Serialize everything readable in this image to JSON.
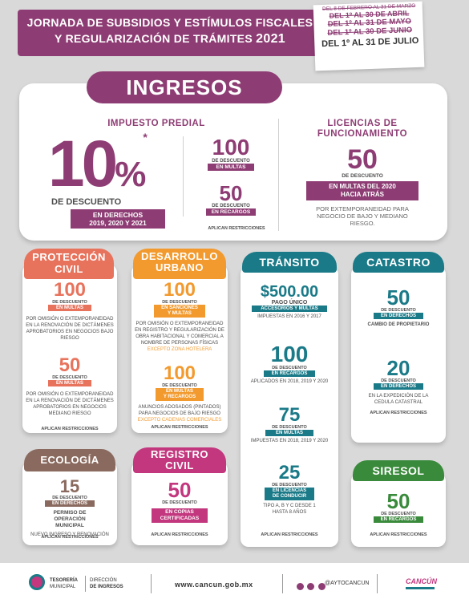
{
  "header": {
    "title_line1": "JORNADA DE SUBSIDIOS Y ESTÍMULOS FISCALES",
    "title_line2": "Y REGULARIZACIÓN DE TRÁMITES",
    "year": "2021",
    "dates": [
      "DEL 8 DE FEBRERO AL 31 DE MARZO",
      "DEL 1º AL 30 DE ABRIL",
      "DEL 1º AL 31 DE MAYO",
      "DEL 1º AL 30 DE JUNIO",
      "DEL 1º AL 31 DE JULIO"
    ]
  },
  "ingresos": {
    "title": "INGRESOS",
    "predial": {
      "title": "IMPUESTO PREDIAL",
      "main_value": "10",
      "main_pct": "%",
      "star": "*",
      "main_label": "DE DESCUENTO",
      "main_ribbon1": "EN DERECHOS",
      "main_ribbon2": "2019, 2020 Y 2021",
      "side1_value": "100",
      "side1_label": "DE DESCUENTO",
      "side1_ribbon": "EN MULTAS",
      "side2_value": "50",
      "side2_label": "DE DESCUENTO",
      "side2_ribbon": "EN RECARGOS",
      "note": "APLICAN RESTRICCIONES"
    },
    "licencias": {
      "title1": "LICENCIAS DE",
      "title2": "FUNCIONAMIENTO",
      "value": "50",
      "label": "DE DESCUENTO",
      "ribbon1": "EN MULTAS DEL 2020",
      "ribbon2": "HACIA ATRÁS",
      "desc": "POR EXTEMPORANEIDAD PARA NEGOCIO DE BAJO Y MEDIANO RIESGO."
    }
  },
  "proteccion": {
    "title": "PROTECCIÓN CIVIL",
    "v1": "100",
    "l1": "DE DESCUENTO",
    "r1": "EN MULTAS",
    "d1": "POR OMISIÓN O EXTEMPORANEIDAD EN LA RENOVACIÓN DE DICTÁMENES APROBATORIOS EN NEGOCIOS BAJO RIESGO",
    "v2": "50",
    "l2": "DE DESCUENTO",
    "r2": "EN MULTAS",
    "d2": "POR OMISIÓN O EXTEMPORANEIDAD EN LA RENOVACIÓN DE DICTÁMENES APROBATORIOS EN NEGOCIOS MEDIANO RIESGO",
    "note": "APLICAN RESTRICCIONES"
  },
  "desarrollo": {
    "title": "DESARROLLO URBANO",
    "v1": "100",
    "l1": "DE DESCUENTO",
    "r1a": "EN SANCIONES",
    "r1b": "Y MULTAS",
    "d1": "POR OMISIÓN O EXTEMPORANEIDAD EN REGISTRO Y REGULARIZACIÓN DE OBRA HABITACIONAL Y COMERCIAL A NOMBRE DE PERSONAS FÍSICAS",
    "e1": "EXCEPTO ZONA HOTELERA",
    "v2": "100",
    "l2": "DE DESCUENTO",
    "r2a": "EN MULTAS",
    "r2b": "Y RECARGOS",
    "d2": "ANUNCIOS ADOSADOS (PINTADOS) PARA NEGOCIOS DE BAJO RIESGO",
    "e2": "EXCEPTO CADENAS COMERCIALES",
    "note": "APLICAN RESTRICCIONES"
  },
  "transito": {
    "title": "TRÁNSITO",
    "v1": "$500.00",
    "l1": "PAGO ÚNICO",
    "r1": "ACCESORIOS Y MULTAS",
    "d1": "IMPUESTAS EN 2016 Y 2017",
    "v2": "100",
    "l2": "DE DESCUENTO",
    "r2": "EN RECARGOS",
    "d2": "APLICADOS EN 2018, 2019 Y 2020",
    "v3": "75",
    "l3": "DE DESCUENTO",
    "r3": "EN MULTAS",
    "d3": "IMPUESTAS EN 2018, 2019 Y 2020",
    "v4": "25",
    "l4": "DE DESCUENTO",
    "r4a": "EN LICENCIAS",
    "r4b": "DE CONDUCIR",
    "d4": "TIPO A, B Y C DESDE 1 HASTA 8 AÑOS",
    "note": "APLICAN RESTRICCIONES"
  },
  "catastro": {
    "title": "CATASTRO",
    "v1": "50",
    "l1": "DE DESCUENTO",
    "r1": "EN DERECHOS",
    "d1": "CAMBIO DE PROPIETARIO",
    "v2": "20",
    "l2": "DE DESCUENTO",
    "r2": "EN DERECHOS",
    "d2": "EN LA EXPEDICIÓN DE LA CEDULA CATASTRAL",
    "note": "APLICAN RESTRICCIONES"
  },
  "ecologia": {
    "title": "ECOLOGÍA",
    "v1": "15",
    "l1": "DE DESCUENTO",
    "r1": "EN DERECHOS",
    "d1": "PERMISO DE OPERACIÓN MUNICIPAL",
    "d2": "NUEVO INGRESO Y RENOVACIÓN",
    "note": "APLICAN RESTRICCIONES"
  },
  "registro": {
    "title": "REGISTRO CIVIL",
    "v1": "50",
    "l1": "DE DESCUENTO",
    "r1a": "EN COPIAS",
    "r1b": "CERTIFICADAS",
    "note": "APLICAN RESTRICCIONES"
  },
  "siresol": {
    "title": "SIRESOL",
    "v1": "50",
    "l1": "DE DESCUENTO",
    "r1": "EN RECARGOS",
    "note": "APLICAN RESTRICCIONES"
  },
  "footer": {
    "tesoreria1": "TESORERÍA",
    "tesoreria2": "MUNICIPAL",
    "direccion1": "DIRECCIÓN",
    "direccion2": "DE INGRESOS",
    "website": "www.cancun.gob.mx",
    "social": "@AYTOCANCUN",
    "brand": "CANCÚN"
  },
  "colors": {
    "plum": "#8e3d74",
    "salmon": "#e8735d",
    "orange": "#f29a2e",
    "teal": "#1a7a88",
    "green": "#3a8a3c",
    "brown": "#8a6a5e",
    "magenta": "#c2377e"
  }
}
